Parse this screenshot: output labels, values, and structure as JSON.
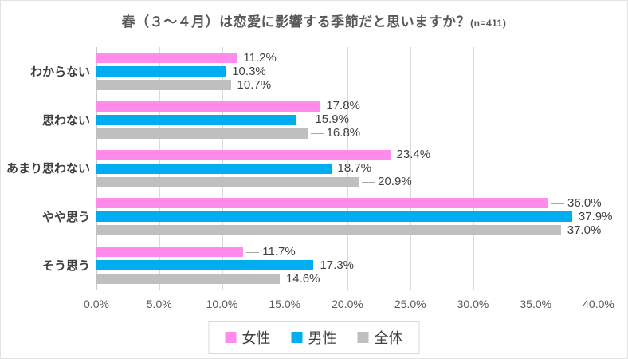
{
  "title": "春（３～４月）は恋愛に影響する季節だと思いますか？",
  "sample_note": "(n=411)",
  "chart_data": {
    "type": "bar",
    "orientation": "horizontal",
    "title": "春（３～４月）は恋愛に影響する季節だと思いますか？(n=411)",
    "categories": [
      "わからない",
      "思わない",
      "あまり思わない",
      "やや思う",
      "そう思う"
    ],
    "series": [
      {
        "name": "女性",
        "color": "#FF8CEC",
        "values": [
          11.2,
          17.8,
          23.4,
          36.0,
          11.7
        ],
        "leaders": [
          false,
          false,
          false,
          true,
          true
        ]
      },
      {
        "name": "男性",
        "color": "#00AEEF",
        "values": [
          10.3,
          15.9,
          18.7,
          37.9,
          17.3
        ],
        "leaders": [
          false,
          true,
          false,
          false,
          false
        ]
      },
      {
        "name": "全体",
        "color": "#BFBFBF",
        "values": [
          10.7,
          16.8,
          20.9,
          37.0,
          14.6
        ],
        "leaders": [
          false,
          true,
          true,
          false,
          false
        ]
      }
    ],
    "xlim": [
      0,
      40
    ],
    "x_ticks": [
      "0.0%",
      "5.0%",
      "10.0%",
      "15.0%",
      "20.0%",
      "25.0%",
      "30.0%",
      "35.0%",
      "40.0%"
    ],
    "value_suffix": "%",
    "grid": true,
    "legend_position": "bottom",
    "gridline_color": "#D9D9D9",
    "label_color": "#404040",
    "axis_text_color": "#595959"
  }
}
